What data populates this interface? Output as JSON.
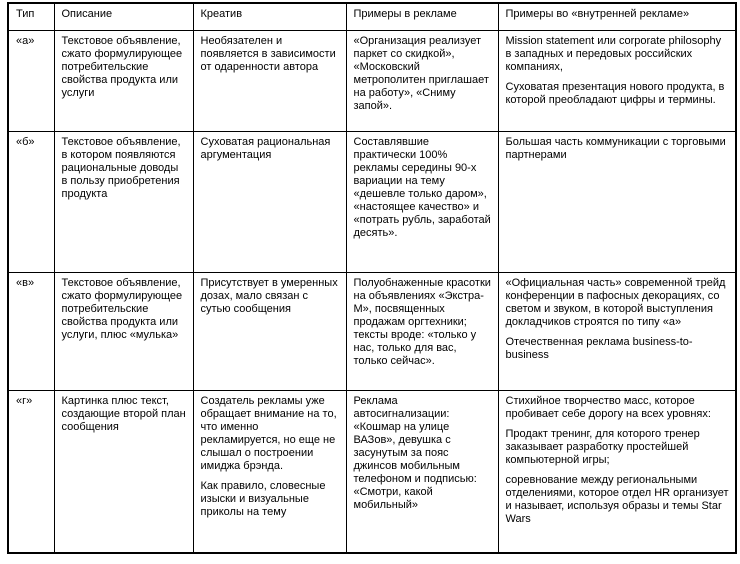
{
  "table": {
    "headers": [
      "Тип",
      "Описание",
      "Креатив",
      "Примеры в рекламе",
      "Примеры во «внутренней рекламе»"
    ],
    "rows": [
      {
        "type": "«а»",
        "cells": [
          [
            "Текстовое объявление, сжато формулирующее потребительские свойства продукта или услуги"
          ],
          [
            "Необязателен и появляется в зависимости от одаренности автора"
          ],
          [
            "«Организация реализует паркет со скидкой», «Московский метрополитен приглашает на работу», «Сниму запой»."
          ],
          [
            "Mission statement или corporate philosophy в западных и передовых российских компаниях,",
            "Суховатая презентация нового продукта, в которой преобладают цифры и термины."
          ]
        ]
      },
      {
        "type": "«б»",
        "cells": [
          [
            "Текстовое объявление, в котором появляются рациональные доводы в пользу приобретения продукта"
          ],
          [
            "Суховатая рациональная аргументация"
          ],
          [
            "Составлявшие практически 100% рекламы середины 90-х вариации на тему «дешевле только даром», «настоящее качество» и «потрать рубль, заработай десять»."
          ],
          [
            "Большая часть коммуникации с торговыми партнерами"
          ]
        ]
      },
      {
        "type": "«в»",
        "cells": [
          [
            "Текстовое объявление, сжато формулирующее потребительские свойства продукта или услуги, плюс «мулька»"
          ],
          [
            "Присутствует в умеренных дозах, мало связан с сутью сообщения"
          ],
          [
            "Полуобнаженные красотки на объявлениях «Экстра-М», посвященных продажам оргтехники; тексты вроде: «только у нас, только для вас, только сейчас»."
          ],
          [
            "«Официальная часть» современной трейд конференции в пафосных декорациях, со светом и звуком, в которой выступления докладчиков строятся по типу «а»",
            "Отечественная реклама business-to-business"
          ]
        ]
      },
      {
        "type": "«г»",
        "cells": [
          [
            "Картинка плюс текст, создающие второй план сообщения"
          ],
          [
            "Создатель рекламы уже обращает внимание на то, что именно рекламируется, но еще не слышал о построении имиджа брэнда.",
            "Как правило, словесные изыски и визуальные приколы на тему"
          ],
          [
            "Реклама автосигнализации: «Кошмар на улице ВАЗов», девушка с засунутым за пояс джинсов мобильным телефоном и подписью: «Смотри, какой мобильный»"
          ],
          [
            "Стихийное творчество масс, которое пробивает себе дорогу на всех уровнях:",
            "Продакт тренинг, для которого тренер заказывает разработку простейшей компьютерной игры;",
            "соревнование между региональными отделениями, которое отдел HR организует и называет, используя образы и темы Star Wars"
          ]
        ]
      }
    ]
  }
}
